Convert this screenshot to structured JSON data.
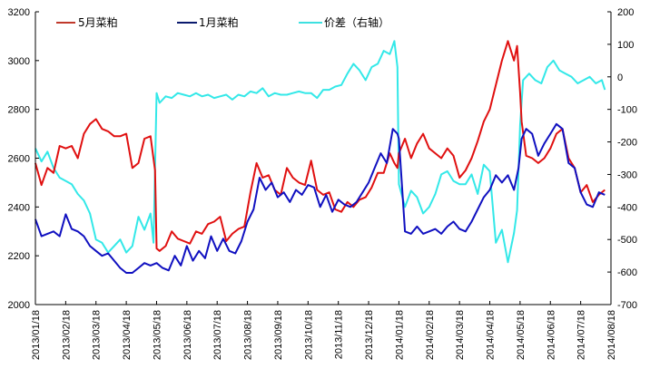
{
  "chart_data": {
    "type": "line",
    "title": "",
    "xlabel": "",
    "ylabel": "",
    "y2label": "",
    "grid": false,
    "legend_position": "top",
    "x_tick_labels": [
      "2013/01/18",
      "2013/02/18",
      "2013/03/18",
      "2013/04/18",
      "2013/05/18",
      "2013/06/18",
      "2013/07/18",
      "2013/08/18",
      "2013/09/18",
      "2013/10/18",
      "2013/11/18",
      "2013/12/18",
      "2014/01/18",
      "2014/02/18",
      "2014/03/18",
      "2014/04/18",
      "2014/05/18",
      "2014/06/18",
      "2014/07/18",
      "2014/08/18"
    ],
    "y_left": {
      "range": [
        2000,
        3200
      ],
      "ticks": [
        2000,
        2200,
        2400,
        2600,
        2800,
        3000,
        3200
      ]
    },
    "y_right": {
      "range": [
        -700,
        200
      ],
      "ticks": [
        200,
        100,
        0,
        -100,
        -200,
        -300,
        -400,
        -500,
        -600,
        -700
      ]
    },
    "series": [
      {
        "name": "5月菜粕",
        "axis": "left",
        "color": "#e01010",
        "x": [
          0,
          0.2,
          0.4,
          0.6,
          0.8,
          1.0,
          1.2,
          1.4,
          1.6,
          1.8,
          2.0,
          2.2,
          2.4,
          2.6,
          2.8,
          3.0,
          3.2,
          3.4,
          3.6,
          3.8,
          3.95,
          4.0,
          4.1,
          4.3,
          4.5,
          4.7,
          4.9,
          5.1,
          5.3,
          5.5,
          5.7,
          5.9,
          6.1,
          6.3,
          6.5,
          6.7,
          6.9,
          7.1,
          7.3,
          7.5,
          7.7,
          7.9,
          8.1,
          8.3,
          8.5,
          8.7,
          8.9,
          9.1,
          9.3,
          9.5,
          9.7,
          9.9,
          10.1,
          10.3,
          10.5,
          10.7,
          10.9,
          11.1,
          11.3,
          11.5,
          11.7,
          11.85,
          11.95,
          12.0,
          12.2,
          12.4,
          12.6,
          12.8,
          13.0,
          13.2,
          13.4,
          13.6,
          13.8,
          14.0,
          14.2,
          14.4,
          14.6,
          14.8,
          15.0,
          15.2,
          15.4,
          15.6,
          15.8,
          15.9,
          16.0,
          16.05,
          16.2,
          16.4,
          16.6,
          16.8,
          17.0,
          17.2,
          17.4,
          17.6,
          17.8,
          18.0,
          18.2,
          18.4,
          18.6,
          18.8
        ],
        "values": [
          2580,
          2490,
          2560,
          2540,
          2650,
          2640,
          2650,
          2600,
          2700,
          2740,
          2760,
          2720,
          2710,
          2690,
          2690,
          2700,
          2560,
          2580,
          2680,
          2690,
          2550,
          2230,
          2220,
          2240,
          2300,
          2270,
          2260,
          2250,
          2300,
          2290,
          2330,
          2340,
          2360,
          2260,
          2290,
          2310,
          2320,
          2460,
          2580,
          2520,
          2530,
          2470,
          2450,
          2560,
          2520,
          2500,
          2490,
          2590,
          2470,
          2450,
          2460,
          2390,
          2380,
          2420,
          2400,
          2430,
          2440,
          2480,
          2540,
          2540,
          2620,
          2580,
          2560,
          2620,
          2680,
          2600,
          2660,
          2700,
          2640,
          2620,
          2600,
          2640,
          2610,
          2520,
          2550,
          2600,
          2670,
          2750,
          2800,
          2900,
          3000,
          3080,
          3000,
          3060,
          2870,
          2750,
          2610,
          2600,
          2580,
          2600,
          2640,
          2700,
          2720,
          2600,
          2560,
          2460,
          2490,
          2420,
          2450,
          2470
        ]
      },
      {
        "name": "1月菜粕",
        "axis": "left",
        "color": "#1010c0",
        "x": [
          0,
          0.2,
          0.4,
          0.6,
          0.8,
          1.0,
          1.2,
          1.4,
          1.6,
          1.8,
          2.0,
          2.2,
          2.4,
          2.6,
          2.8,
          3.0,
          3.2,
          3.4,
          3.6,
          3.8,
          4.0,
          4.2,
          4.4,
          4.6,
          4.8,
          5.0,
          5.2,
          5.4,
          5.6,
          5.8,
          6.0,
          6.2,
          6.4,
          6.6,
          6.8,
          7.0,
          7.2,
          7.4,
          7.6,
          7.8,
          8.0,
          8.2,
          8.4,
          8.6,
          8.8,
          9.0,
          9.2,
          9.4,
          9.6,
          9.8,
          10.0,
          10.2,
          10.4,
          10.6,
          10.8,
          11.0,
          11.2,
          11.4,
          11.6,
          11.8,
          11.95,
          12.0,
          12.2,
          12.4,
          12.6,
          12.8,
          13.0,
          13.2,
          13.4,
          13.6,
          13.8,
          14.0,
          14.2,
          14.4,
          14.6,
          14.8,
          15.0,
          15.2,
          15.4,
          15.6,
          15.8,
          15.95,
          16.05,
          16.2,
          16.4,
          16.6,
          16.8,
          17.0,
          17.2,
          17.4,
          17.6,
          17.8,
          18.0,
          18.2,
          18.4,
          18.6,
          18.8
        ],
        "values": [
          2350,
          2280,
          2290,
          2300,
          2280,
          2370,
          2310,
          2300,
          2280,
          2240,
          2220,
          2200,
          2210,
          2180,
          2150,
          2130,
          2130,
          2150,
          2170,
          2160,
          2170,
          2150,
          2140,
          2200,
          2160,
          2240,
          2180,
          2220,
          2190,
          2280,
          2220,
          2270,
          2220,
          2210,
          2260,
          2340,
          2390,
          2520,
          2470,
          2500,
          2440,
          2460,
          2420,
          2470,
          2450,
          2490,
          2480,
          2400,
          2450,
          2380,
          2430,
          2410,
          2400,
          2420,
          2460,
          2500,
          2560,
          2620,
          2580,
          2720,
          2700,
          2680,
          2300,
          2290,
          2320,
          2290,
          2300,
          2310,
          2290,
          2320,
          2340,
          2310,
          2300,
          2340,
          2390,
          2440,
          2470,
          2530,
          2500,
          2530,
          2470,
          2560,
          2680,
          2720,
          2700,
          2610,
          2660,
          2700,
          2740,
          2720,
          2580,
          2560,
          2460,
          2410,
          2400,
          2460,
          2450
        ]
      },
      {
        "name": "价差（右轴）",
        "axis": "right",
        "color": "#33e8e8",
        "x": [
          0,
          0.2,
          0.4,
          0.6,
          0.8,
          1.0,
          1.2,
          1.4,
          1.6,
          1.8,
          2.0,
          2.2,
          2.4,
          2.6,
          2.8,
          3.0,
          3.2,
          3.4,
          3.6,
          3.8,
          3.9,
          4.0,
          4.1,
          4.3,
          4.5,
          4.7,
          4.9,
          5.1,
          5.3,
          5.5,
          5.7,
          5.9,
          6.1,
          6.3,
          6.5,
          6.7,
          6.9,
          7.1,
          7.3,
          7.5,
          7.7,
          7.9,
          8.1,
          8.3,
          8.5,
          8.7,
          8.9,
          9.1,
          9.3,
          9.5,
          9.7,
          9.9,
          10.1,
          10.3,
          10.5,
          10.7,
          10.9,
          11.1,
          11.3,
          11.5,
          11.7,
          11.85,
          11.95,
          12.0,
          12.2,
          12.4,
          12.6,
          12.8,
          13.0,
          13.2,
          13.4,
          13.6,
          13.8,
          14.0,
          14.2,
          14.4,
          14.6,
          14.8,
          15.0,
          15.2,
          15.4,
          15.6,
          15.8,
          15.9,
          16.0,
          16.1,
          16.3,
          16.5,
          16.7,
          16.9,
          17.1,
          17.3,
          17.5,
          17.7,
          17.9,
          18.1,
          18.3,
          18.5,
          18.7,
          18.8
        ],
        "values": [
          -220,
          -260,
          -230,
          -280,
          -310,
          -320,
          -330,
          -360,
          -380,
          -420,
          -500,
          -510,
          -540,
          -520,
          -500,
          -540,
          -520,
          -430,
          -470,
          -420,
          -510,
          -50,
          -80,
          -60,
          -65,
          -50,
          -55,
          -60,
          -50,
          -60,
          -55,
          -65,
          -60,
          -55,
          -70,
          -55,
          -60,
          -45,
          -50,
          -35,
          -60,
          -50,
          -55,
          -55,
          -50,
          -45,
          -50,
          -50,
          -65,
          -40,
          -40,
          -30,
          -25,
          10,
          40,
          20,
          -10,
          30,
          40,
          80,
          70,
          110,
          30,
          -330,
          -400,
          -350,
          -370,
          -420,
          -400,
          -360,
          -300,
          -290,
          -320,
          -330,
          -330,
          -300,
          -360,
          -270,
          -290,
          -510,
          -470,
          -570,
          -480,
          -410,
          -150,
          -10,
          10,
          -10,
          -20,
          30,
          50,
          20,
          10,
          0,
          -20,
          -10,
          0,
          -20,
          -10,
          -40
        ]
      }
    ]
  },
  "legend": {
    "items": [
      {
        "label": "5月菜粕",
        "color": "#c0392b"
      },
      {
        "label": "1月菜粕",
        "color": "#0a1a6e"
      },
      {
        "label": "价差（右轴）",
        "color": "#3ee0e0"
      }
    ]
  }
}
